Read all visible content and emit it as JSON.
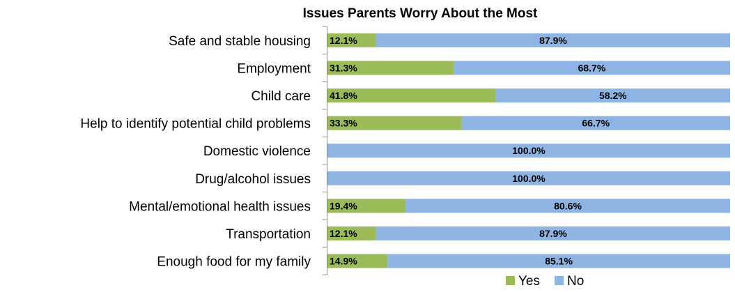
{
  "chart_data": {
    "type": "bar",
    "orientation": "horizontal",
    "stacked": true,
    "percent_stacked": true,
    "title": "Issues Parents Worry About the Most",
    "xlabel": "",
    "ylabel": "",
    "xlim": [
      0,
      100
    ],
    "grid": false,
    "legend_position": "bottom",
    "categories": [
      "Safe and stable housing",
      "Employment",
      "Child care",
      "Help to identify potential child problems",
      "Domestic violence",
      "Drug/alcohol issues",
      "Mental/emotional health issues",
      "Transportation",
      "Enough food for my family"
    ],
    "series": [
      {
        "name": "Yes",
        "color": "#9bbb59",
        "values": [
          12.1,
          31.3,
          41.8,
          33.3,
          0,
          0,
          19.4,
          12.1,
          14.9
        ],
        "labels": [
          "12.1%",
          "31.3%",
          "41.8%",
          "33.3%",
          "",
          "",
          "19.4%",
          "12.1%",
          "14.9%"
        ]
      },
      {
        "name": "No",
        "color": "#8eb4e3",
        "values": [
          87.9,
          68.7,
          58.2,
          66.7,
          100,
          100,
          80.6,
          87.9,
          85.1
        ],
        "labels": [
          "87.9%",
          "68.7%",
          "58.2%",
          "66.7%",
          "100.0%",
          "100.0%",
          "80.6%",
          "87.9%",
          "85.1%"
        ]
      }
    ]
  }
}
